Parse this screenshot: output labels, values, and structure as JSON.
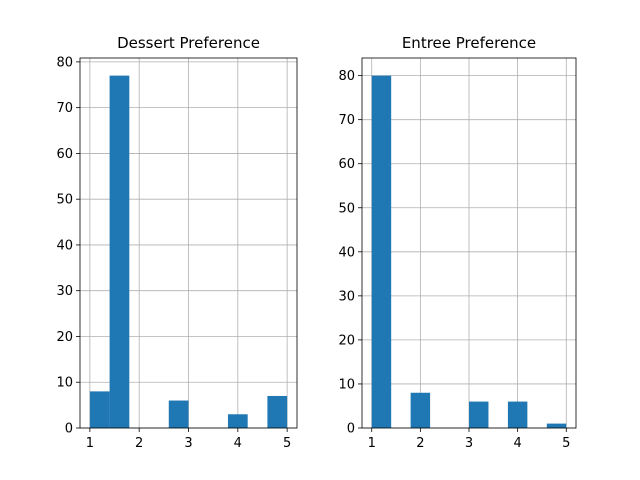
{
  "figure": {
    "background": "#ffffff",
    "bar_color": "#1f77b4",
    "grid_color": "#b0b0b0"
  },
  "chart_data": [
    {
      "type": "bar",
      "title": "Dessert Preference",
      "xlabel": "",
      "ylabel": "",
      "bin_edges": [
        1.0,
        1.4,
        1.8,
        2.2,
        2.6,
        3.0,
        3.4,
        3.8,
        4.2,
        4.6,
        5.0
      ],
      "values": [
        8,
        77,
        0,
        0,
        6,
        0,
        0,
        3,
        0,
        7
      ],
      "xlim": [
        0.8,
        5.2
      ],
      "ylim": [
        0,
        80.85
      ],
      "xticks": [
        1,
        2,
        3,
        4,
        5
      ],
      "xtick_labels": [
        "1",
        "2",
        "3",
        "4",
        "5"
      ],
      "yticks": [
        0,
        10,
        20,
        30,
        40,
        50,
        60,
        70,
        80
      ],
      "ytick_labels": [
        "0",
        "10",
        "20",
        "30",
        "40",
        "50",
        "60",
        "70",
        "80"
      ],
      "grid": true
    },
    {
      "type": "bar",
      "title": "Entree Preference",
      "xlabel": "",
      "ylabel": "",
      "bin_edges": [
        1.0,
        1.4,
        1.8,
        2.2,
        2.6,
        3.0,
        3.4,
        3.8,
        4.2,
        4.6,
        5.0
      ],
      "values": [
        80,
        0,
        8,
        0,
        0,
        6,
        0,
        6,
        0,
        1
      ],
      "xlim": [
        0.8,
        5.2
      ],
      "ylim": [
        0,
        84
      ],
      "xticks": [
        1,
        2,
        3,
        4,
        5
      ],
      "xtick_labels": [
        "1",
        "2",
        "3",
        "4",
        "5"
      ],
      "yticks": [
        0,
        10,
        20,
        30,
        40,
        50,
        60,
        70,
        80
      ],
      "ytick_labels": [
        "0",
        "10",
        "20",
        "30",
        "40",
        "50",
        "60",
        "70",
        "80"
      ],
      "grid": true
    }
  ]
}
